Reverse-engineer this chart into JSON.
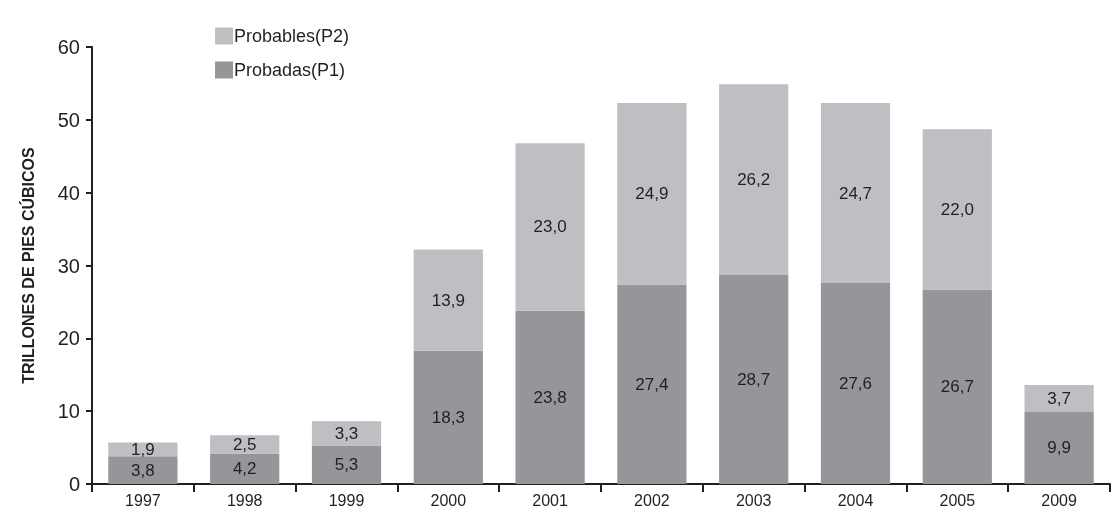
{
  "chart_data": {
    "type": "bar",
    "stacked": true,
    "ylabel": "TRILLONES DE PIES CÚBICOS",
    "categories": [
      "1997",
      "1998",
      "1999",
      "2000",
      "2001",
      "2002",
      "2003",
      "2004",
      "2005",
      "2009"
    ],
    "series": [
      {
        "name": "Probadas(P1)",
        "color": "#95959a",
        "values": [
          3.8,
          4.2,
          5.3,
          18.3,
          23.8,
          27.4,
          28.7,
          27.6,
          26.7,
          9.9
        ],
        "value_labels": [
          "3,8",
          "4,2",
          "5,3",
          "18,3",
          "23,8",
          "27,4",
          "28,7",
          "27,6",
          "26,7",
          "9,9"
        ]
      },
      {
        "name": "Probables(P2)",
        "color": "#bebfc3",
        "values": [
          1.9,
          2.5,
          3.3,
          13.9,
          23.0,
          24.9,
          26.2,
          24.7,
          22.0,
          3.7
        ],
        "value_labels": [
          "1,9",
          "2,5",
          "3,3",
          "13,9",
          "23,0",
          "24,9",
          "26,2",
          "24,7",
          "22,0",
          "3,7"
        ]
      }
    ],
    "ylim": [
      0,
      60
    ],
    "yticks": [
      0,
      10,
      20,
      30,
      40,
      50,
      60
    ],
    "grid": false,
    "legend": "top left"
  }
}
